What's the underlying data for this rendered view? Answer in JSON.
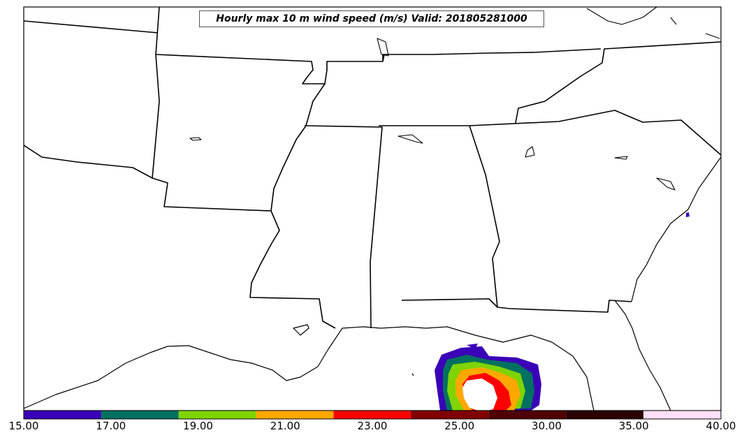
{
  "title": "Hourly max 10 m wind speed (m/s) Valid: 201805281000",
  "colorbar": {
    "colors": [
      "#3a00b8",
      "#007060",
      "#7fd400",
      "#ffa800",
      "#ff0000",
      "#800000",
      "#500000",
      "#2a0000",
      "#ffe0f8"
    ],
    "tick_labels": [
      "15.00",
      "17.00",
      "19.00",
      "21.00",
      "23.00",
      "25.00",
      "30.00",
      "35.00",
      "40.00"
    ]
  }
}
